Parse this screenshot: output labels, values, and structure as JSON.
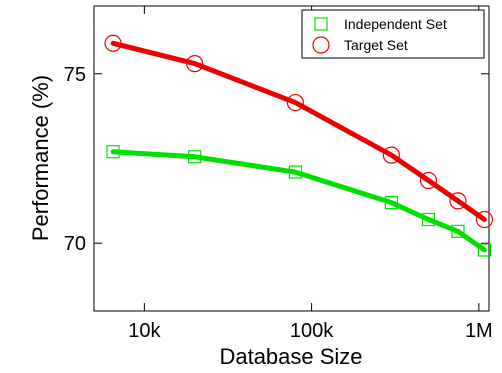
{
  "chart_data": {
    "type": "line",
    "title": "",
    "xlabel": "Database Size",
    "ylabel": "Performance (%)",
    "xscale": "log",
    "xlim": [
      5000,
      1150000
    ],
    "ylim": [
      68,
      77
    ],
    "xticks": [
      {
        "value": 10000,
        "label": "10k"
      },
      {
        "value": 100000,
        "label": "100k"
      },
      {
        "value": 1000000,
        "label": "1M"
      }
    ],
    "yticks": [
      {
        "value": 70,
        "label": "70"
      },
      {
        "value": 75,
        "label": "75"
      }
    ],
    "grid": false,
    "legend_position": "top-right",
    "series": [
      {
        "name": "Independent Set",
        "color": "#00e000",
        "marker": "square",
        "x": [
          6500,
          20000,
          80000,
          300000,
          500000,
          750000,
          1080000
        ],
        "y": [
          72.7,
          72.55,
          72.1,
          71.2,
          70.7,
          70.35,
          69.8
        ]
      },
      {
        "name": "Target Set",
        "color": "#ee0000",
        "marker": "circle",
        "x": [
          6500,
          20000,
          80000,
          300000,
          500000,
          750000,
          1080000
        ],
        "y": [
          75.9,
          75.3,
          74.15,
          72.6,
          71.85,
          71.25,
          70.7
        ]
      }
    ]
  }
}
